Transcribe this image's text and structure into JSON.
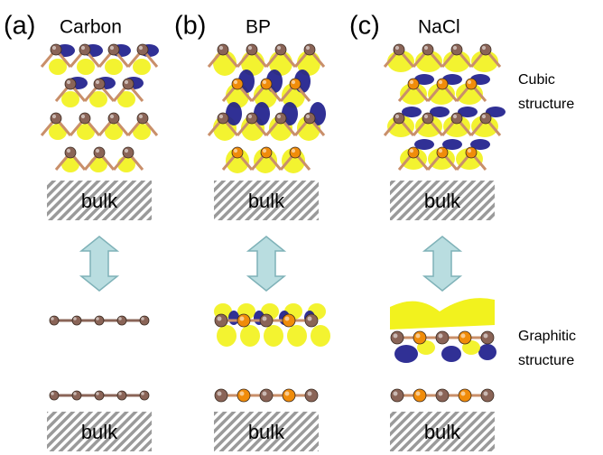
{
  "panels": [
    {
      "label": "(a)",
      "material": "Carbon",
      "bulk_top": "bulk",
      "bulk_bottom": "bulk"
    },
    {
      "label": "(b)",
      "material": "BP",
      "bulk_top": "bulk",
      "bulk_bottom": "bulk"
    },
    {
      "label": "(c)",
      "material": "NaCl",
      "bulk_top": "bulk",
      "bulk_bottom": "bulk"
    }
  ],
  "side_labels": {
    "cubic": [
      "Cubic",
      "structure"
    ],
    "graphitic": [
      "Graphitic",
      "structure"
    ]
  }
}
